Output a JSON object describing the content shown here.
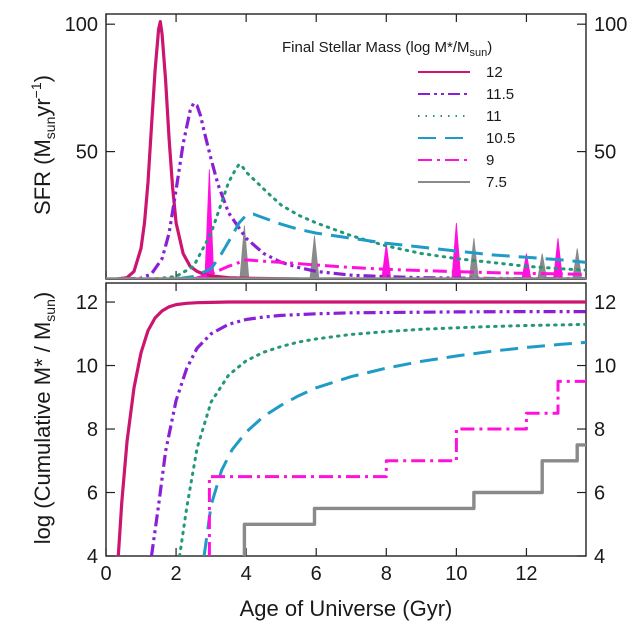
{
  "chart_data": [
    {
      "type": "line",
      "ylabel": "SFR (M",
      "ylabel_sub": "sun",
      "ylabel_mid": "yr",
      "ylabel_sup": "−1",
      "ylabel_end": ")",
      "ylim": [
        0,
        104
      ],
      "yticks": [
        50,
        100
      ],
      "ytick_labels": [
        "50",
        "100"
      ],
      "legend": {
        "title": "Final Stellar Mass (log M*/M",
        "title_sub": "sun",
        "title_end": ")",
        "placement": "top-right"
      },
      "series": [
        {
          "name": "12",
          "color": "#cc1570",
          "dash": "solid",
          "x": [
            0.3,
            0.6,
            0.8,
            1.0,
            1.1,
            1.2,
            1.3,
            1.4,
            1.5,
            1.55,
            1.6,
            1.7,
            1.8,
            1.9,
            2.0,
            2.2,
            2.4,
            2.6,
            2.8,
            3.0,
            3.5,
            4.0,
            4.5,
            5.0,
            5.5
          ],
          "y": [
            0,
            0.5,
            3,
            12,
            22,
            38,
            60,
            82,
            98,
            101,
            96,
            78,
            55,
            36,
            22,
            10,
            5,
            3,
            1.8,
            1.2,
            0.5,
            0.3,
            0.2,
            0.1,
            0
          ]
        },
        {
          "name": "11.5",
          "color": "#8a1fd6",
          "dash": "dashdotdot",
          "x": [
            0.5,
            1.0,
            1.3,
            1.6,
            1.8,
            2.0,
            2.2,
            2.4,
            2.5,
            2.6,
            2.7,
            2.8,
            3.0,
            3.2,
            3.5,
            4.0,
            4.5,
            5.0,
            5.5,
            6.0,
            7.0,
            8.0,
            9.0,
            10.0,
            11.0,
            12.0,
            13.7
          ],
          "y": [
            0,
            0.3,
            2,
            8,
            18,
            35,
            53,
            66,
            69,
            68,
            64,
            58,
            47,
            37,
            26,
            16,
            10,
            6.5,
            4.5,
            3,
            1.5,
            0.9,
            0.5,
            0.35,
            0.2,
            0.15,
            0.1
          ]
        },
        {
          "name": "11",
          "color": "#24977a",
          "dash": "dotted",
          "x": [
            1.0,
            1.5,
            2.0,
            2.5,
            3.0,
            3.3,
            3.5,
            3.7,
            3.8,
            3.9,
            4.0,
            4.3,
            4.6,
            5.0,
            5.5,
            6.0,
            7.0,
            8.0,
            9.0,
            10.0,
            11.0,
            12.0,
            13.0,
            13.7
          ],
          "y": [
            0,
            0.2,
            1,
            5,
            18,
            30,
            38,
            43,
            45,
            44,
            42,
            38,
            34,
            29,
            25,
            22,
            17,
            13,
            10,
            8,
            6.5,
            5,
            4,
            3.5
          ]
        },
        {
          "name": "10.5",
          "color": "#1f9bc8",
          "dash": "longdash",
          "x": [
            2.0,
            2.5,
            3.0,
            3.3,
            3.6,
            3.8,
            4.0,
            4.2,
            4.4,
            4.7,
            5.0,
            5.5,
            6.0,
            7.0,
            8.0,
            9.0,
            10.0,
            11.0,
            12.0,
            13.0,
            13.7
          ],
          "y": [
            0,
            1,
            4,
            10,
            17,
            22,
            25,
            25.5,
            24.5,
            23,
            21.5,
            19.5,
            18,
            16,
            14,
            12.5,
            11,
            9.5,
            8.5,
            7.5,
            6.5
          ]
        },
        {
          "name": "9",
          "color": "#ff10dd",
          "dash": "dashdot",
          "x": [
            2.5,
            3.0,
            3.5,
            4.0,
            4.5,
            5.0,
            6.0,
            7.0,
            8.0,
            9.0,
            10.0,
            11.0,
            12.0,
            13.0,
            13.7
          ],
          "y": [
            0,
            2,
            5,
            7.5,
            7,
            6.5,
            5.5,
            4.5,
            3.8,
            3.3,
            2.9,
            2.5,
            2.2,
            2.0,
            1.8
          ]
        },
        {
          "name": "7.5",
          "color": "#8a8a8a",
          "dash": "solid",
          "x": [
            0.0,
            13.7
          ],
          "y": [
            0,
            0
          ]
        }
      ],
      "spikes": [
        {
          "series": "9",
          "x": 2.95,
          "height": 43,
          "color": "#ff10dd"
        },
        {
          "series": "9",
          "x": 8.0,
          "height": 14,
          "color": "#ff10dd"
        },
        {
          "series": "9",
          "x": 10.0,
          "height": 22,
          "color": "#ff10dd"
        },
        {
          "series": "9",
          "x": 12.0,
          "height": 10,
          "color": "#ff10dd"
        },
        {
          "series": "9",
          "x": 12.9,
          "height": 16,
          "color": "#ff10dd"
        },
        {
          "series": "7.5",
          "x": 3.95,
          "height": 21,
          "color": "#8a8a8a"
        },
        {
          "series": "7.5",
          "x": 5.95,
          "height": 17,
          "color": "#8a8a8a"
        },
        {
          "series": "7.5",
          "x": 10.5,
          "height": 16,
          "color": "#8a8a8a"
        },
        {
          "series": "7.5",
          "x": 12.45,
          "height": 10,
          "color": "#8a8a8a"
        },
        {
          "series": "7.5",
          "x": 13.45,
          "height": 12,
          "color": "#8a8a8a"
        }
      ]
    },
    {
      "type": "line",
      "ylabel": "log (Cumulative M* / M",
      "ylabel_sub": "sun",
      "ylabel_end": ")",
      "xlabel": "Age of Universe (Gyr)",
      "xlim": [
        0,
        13.7
      ],
      "ylim": [
        4,
        12.6
      ],
      "xticks": [
        0,
        2,
        4,
        6,
        8,
        10,
        12
      ],
      "xtick_labels": [
        "0",
        "2",
        "4",
        "6",
        "8",
        "10",
        "12"
      ],
      "yticks": [
        4,
        6,
        8,
        10,
        12
      ],
      "ytick_labels": [
        "4",
        "6",
        "8",
        "10",
        "12"
      ],
      "series": [
        {
          "name": "12",
          "color": "#cc1570",
          "dash": "solid",
          "x": [
            0.35,
            0.45,
            0.6,
            0.8,
            1.0,
            1.2,
            1.4,
            1.6,
            1.8,
            2.0,
            2.3,
            2.6,
            3.0,
            3.5,
            4.0,
            5.0,
            6.0,
            8.0,
            10.0,
            12.0,
            13.7
          ],
          "y": [
            4,
            5.7,
            7.6,
            9.3,
            10.4,
            11.1,
            11.5,
            11.72,
            11.85,
            11.92,
            11.96,
            11.98,
            11.99,
            12.0,
            12.0,
            12.0,
            12.0,
            12.0,
            12.0,
            12.0,
            12.0
          ]
        },
        {
          "name": "11.5",
          "color": "#8a1fd6",
          "dash": "dashdotdot",
          "x": [
            1.3,
            1.5,
            1.7,
            2.0,
            2.3,
            2.6,
            3.0,
            3.5,
            4.0,
            4.5,
            5.0,
            6.0,
            7.0,
            8.0,
            10.0,
            12.0,
            13.7
          ],
          "y": [
            4,
            5.6,
            7.3,
            8.9,
            9.9,
            10.55,
            11.0,
            11.3,
            11.45,
            11.53,
            11.58,
            11.63,
            11.66,
            11.67,
            11.69,
            11.7,
            11.7
          ]
        },
        {
          "name": "11",
          "color": "#24977a",
          "dash": "dotted",
          "x": [
            2.1,
            2.3,
            2.6,
            3.0,
            3.5,
            4.0,
            4.5,
            5.0,
            5.5,
            6.0,
            7.0,
            8.0,
            9.0,
            10.0,
            11.0,
            12.0,
            13.0,
            13.7
          ],
          "y": [
            4,
            5.5,
            7.4,
            8.85,
            9.7,
            10.15,
            10.42,
            10.6,
            10.74,
            10.84,
            10.98,
            11.07,
            11.14,
            11.19,
            11.23,
            11.26,
            11.28,
            11.3
          ]
        },
        {
          "name": "10.5",
          "color": "#1f9bc8",
          "dash": "longdash",
          "x": [
            2.8,
            3.0,
            3.3,
            3.6,
            4.0,
            4.5,
            5.0,
            5.5,
            6.0,
            7.0,
            8.0,
            9.0,
            10.0,
            11.0,
            12.0,
            13.0,
            13.7
          ],
          "y": [
            4,
            5.6,
            6.7,
            7.35,
            7.9,
            8.4,
            8.75,
            9.05,
            9.3,
            9.65,
            9.92,
            10.13,
            10.3,
            10.45,
            10.57,
            10.67,
            10.73
          ]
        },
        {
          "name": "9",
          "color": "#ff10dd",
          "dash": "dashdot",
          "step": true,
          "x": [
            2.95,
            2.95,
            8.0,
            8.0,
            10.0,
            10.0,
            12.0,
            12.0,
            12.9,
            12.9,
            13.7
          ],
          "y": [
            4,
            6.5,
            6.5,
            7.0,
            7.0,
            8.0,
            8.0,
            8.5,
            8.5,
            9.5,
            9.5
          ]
        },
        {
          "name": "7.5",
          "color": "#8a8a8a",
          "dash": "solid",
          "step": true,
          "x": [
            3.95,
            3.95,
            5.95,
            5.95,
            10.5,
            10.5,
            12.45,
            12.45,
            13.45,
            13.45,
            13.7
          ],
          "y": [
            4,
            5.0,
            5.0,
            5.5,
            5.5,
            6.0,
            6.0,
            7.0,
            7.0,
            7.5,
            7.5
          ]
        }
      ]
    }
  ]
}
